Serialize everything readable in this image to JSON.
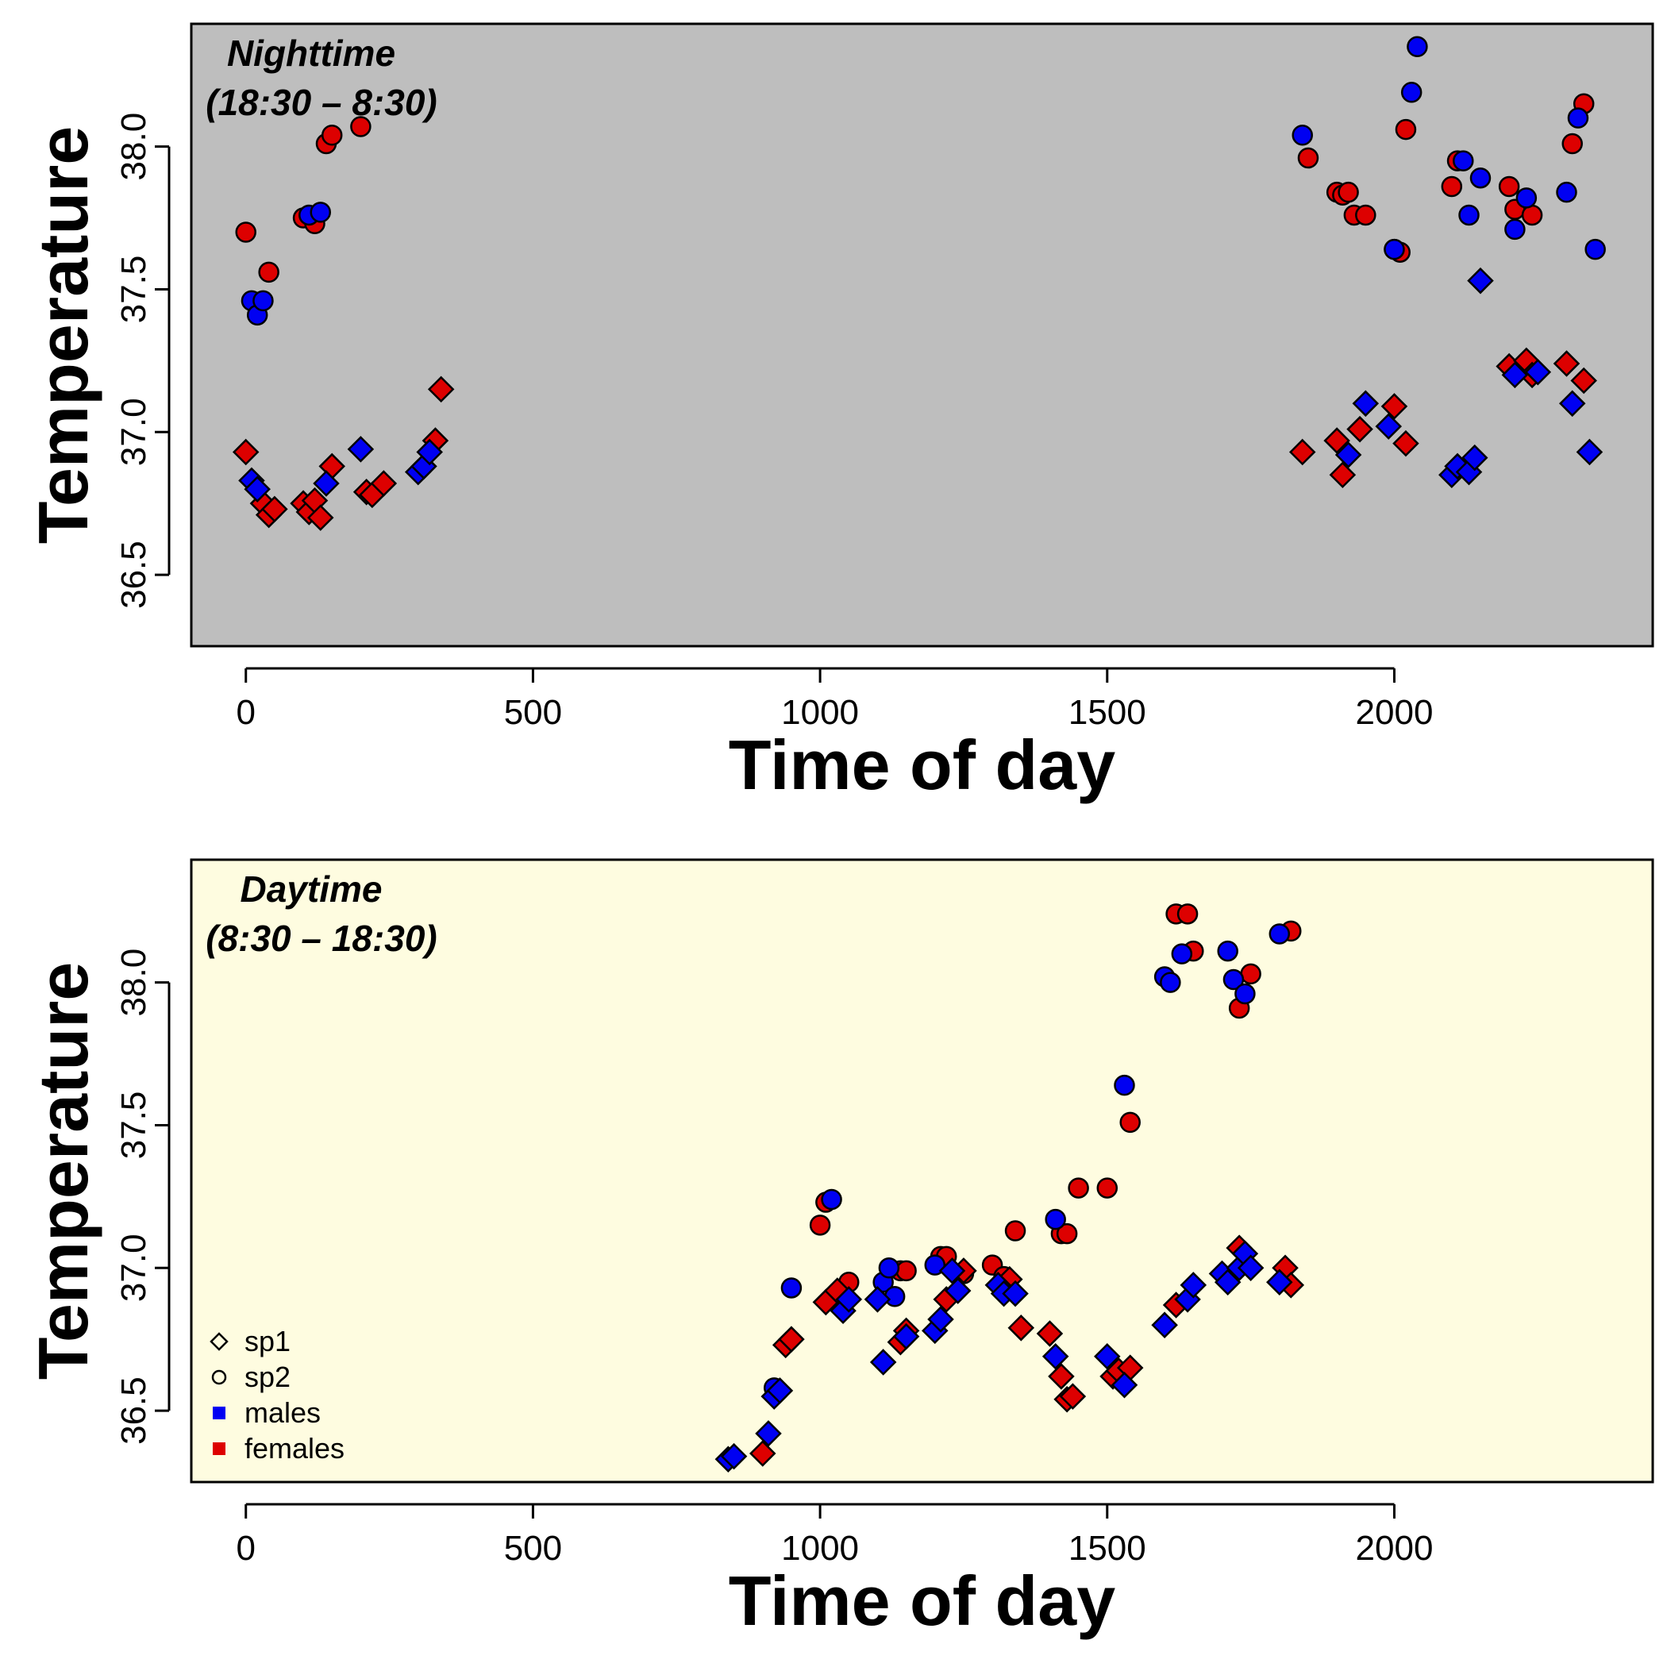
{
  "colors": {
    "male": "#0000f2",
    "female": "#dd0000",
    "outline": "#000000",
    "night_bg": "#bebebe",
    "day_bg": "#fefce0"
  },
  "legend": {
    "items": [
      {
        "label": "sp1",
        "symbol": "diamond-outline",
        "color": "#000000"
      },
      {
        "label": "sp2",
        "symbol": "circle-outline",
        "color": "#000000"
      },
      {
        "label": "males",
        "symbol": "square-filled",
        "color": "#0000f2"
      },
      {
        "label": "females",
        "symbol": "square-filled",
        "color": "#dd0000"
      }
    ],
    "placement": "bottom-left of lower panel"
  },
  "chart_data": [
    {
      "type": "scatter",
      "panel": "Nighttime",
      "annotation": [
        "Nighttime",
        "(18:30 – 8:30)"
      ],
      "xlabel": "Time of day",
      "ylabel": "Temperature",
      "xlim": [
        -95,
        2450
      ],
      "ylim": [
        36.25,
        38.43
      ],
      "xticks": [
        0,
        500,
        1000,
        1500,
        2000
      ],
      "yticks": [
        36.5,
        37.0,
        37.5,
        38.0
      ],
      "xtick_labels": [
        "0",
        "500",
        "1000",
        "1500",
        "2000"
      ],
      "ytick_labels": [
        "36.5",
        "37.0",
        "37.5",
        "38.0"
      ],
      "grid": false,
      "series": [
        {
          "name": "sp2 females",
          "species": "sp2",
          "sex": "females",
          "x": [
            0,
            40,
            100,
            120,
            140,
            150,
            200,
            1850,
            1900,
            1910,
            1920,
            1930,
            1950,
            2000,
            2010,
            2020,
            2100,
            2110,
            2200,
            2210,
            2240,
            2310,
            2330
          ],
          "y": [
            37.7,
            37.56,
            37.75,
            37.73,
            38.01,
            38.04,
            38.07,
            37.96,
            37.84,
            37.83,
            37.84,
            37.76,
            37.76,
            37.64,
            37.63,
            38.06,
            37.86,
            37.95,
            37.86,
            37.78,
            37.76,
            38.01,
            38.15
          ]
        },
        {
          "name": "sp2 males",
          "species": "sp2",
          "sex": "males",
          "x": [
            10,
            20,
            30,
            110,
            130,
            1840,
            2000,
            2030,
            2040,
            2120,
            2130,
            2150,
            2210,
            2230,
            2300,
            2320,
            2350
          ],
          "y": [
            37.46,
            37.41,
            37.46,
            37.76,
            37.77,
            38.04,
            37.64,
            38.19,
            38.35,
            37.95,
            37.76,
            37.89,
            37.71,
            37.82,
            37.84,
            38.1,
            37.64
          ]
        },
        {
          "name": "sp1 females",
          "species": "sp1",
          "sex": "females",
          "x": [
            0,
            30,
            40,
            50,
            100,
            110,
            120,
            130,
            150,
            210,
            220,
            240,
            330,
            340,
            1840,
            1900,
            1910,
            1940,
            2000,
            2020,
            2200,
            2230,
            2240,
            2300,
            2330
          ],
          "y": [
            36.93,
            36.75,
            36.71,
            36.73,
            36.75,
            36.72,
            36.76,
            36.7,
            36.88,
            36.79,
            36.78,
            36.82,
            36.97,
            37.15,
            36.93,
            36.97,
            36.85,
            37.01,
            37.09,
            36.96,
            37.23,
            37.25,
            37.2,
            37.24,
            37.18
          ]
        },
        {
          "name": "sp1 males",
          "species": "sp1",
          "sex": "males",
          "x": [
            10,
            20,
            140,
            200,
            300,
            310,
            320,
            1920,
            1950,
            1990,
            2100,
            2110,
            2130,
            2140,
            2150,
            2210,
            2250,
            2310,
            2340
          ],
          "y": [
            36.83,
            36.8,
            36.82,
            36.94,
            36.86,
            36.88,
            36.93,
            36.92,
            37.1,
            37.02,
            36.85,
            36.88,
            36.86,
            36.91,
            37.53,
            37.2,
            37.21,
            37.1,
            36.93
          ]
        }
      ]
    },
    {
      "type": "scatter",
      "panel": "Daytime",
      "annotation": [
        "Daytime",
        "(8:30 – 18:30)"
      ],
      "xlabel": "Time of day",
      "ylabel": "Temperature",
      "xlim": [
        -95,
        2450
      ],
      "ylim": [
        36.25,
        38.43
      ],
      "xticks": [
        0,
        500,
        1000,
        1500,
        2000
      ],
      "yticks": [
        36.5,
        37.0,
        37.5,
        38.0
      ],
      "xtick_labels": [
        "0",
        "500",
        "1000",
        "1500",
        "2000"
      ],
      "ytick_labels": [
        "36.5",
        "37.0",
        "37.5",
        "38.0"
      ],
      "grid": false,
      "series": [
        {
          "name": "sp2 females",
          "species": "sp2",
          "sex": "females",
          "x": [
            1000,
            1010,
            1050,
            1140,
            1150,
            1210,
            1220,
            1250,
            1300,
            1320,
            1340,
            1420,
            1430,
            1450,
            1500,
            1540,
            1620,
            1640,
            1650,
            1730,
            1750,
            1820
          ],
          "y": [
            37.15,
            37.23,
            36.95,
            36.99,
            36.99,
            37.04,
            37.04,
            36.98,
            37.01,
            36.97,
            37.13,
            37.12,
            37.12,
            37.28,
            37.28,
            37.51,
            38.24,
            38.24,
            38.11,
            37.91,
            38.03,
            38.18
          ]
        },
        {
          "name": "sp2 males",
          "species": "sp2",
          "sex": "males",
          "x": [
            920,
            950,
            1020,
            1110,
            1120,
            1130,
            1200,
            1410,
            1530,
            1600,
            1610,
            1630,
            1710,
            1720,
            1740,
            1800
          ],
          "y": [
            36.58,
            36.93,
            37.24,
            36.95,
            37.0,
            36.9,
            37.01,
            37.17,
            37.64,
            38.02,
            38.0,
            38.1,
            38.11,
            38.01,
            37.96,
            38.17
          ]
        },
        {
          "name": "sp1 females",
          "species": "sp1",
          "sex": "females",
          "x": [
            900,
            940,
            950,
            1010,
            1030,
            1140,
            1150,
            1220,
            1250,
            1330,
            1350,
            1400,
            1420,
            1430,
            1440,
            1510,
            1520,
            1540,
            1620,
            1730,
            1810,
            1820
          ],
          "y": [
            36.35,
            36.73,
            36.75,
            36.88,
            36.92,
            36.74,
            36.78,
            36.89,
            36.99,
            36.96,
            36.79,
            36.77,
            36.62,
            36.54,
            36.55,
            36.62,
            36.64,
            36.65,
            36.87,
            37.07,
            37.0,
            36.94
          ]
        },
        {
          "name": "sp1 males",
          "species": "sp1",
          "sex": "males",
          "x": [
            840,
            850,
            910,
            920,
            930,
            1040,
            1050,
            1100,
            1110,
            1150,
            1200,
            1210,
            1230,
            1240,
            1310,
            1320,
            1340,
            1410,
            1500,
            1530,
            1600,
            1640,
            1650,
            1700,
            1710,
            1730,
            1740,
            1750,
            1800
          ],
          "y": [
            36.33,
            36.34,
            36.42,
            36.55,
            36.57,
            36.85,
            36.89,
            36.89,
            36.67,
            36.76,
            36.78,
            36.82,
            36.99,
            36.92,
            36.94,
            36.91,
            36.91,
            36.69,
            36.69,
            36.59,
            36.8,
            36.89,
            36.94,
            36.98,
            36.95,
            37.0,
            37.05,
            37.0,
            36.95
          ]
        }
      ]
    }
  ]
}
